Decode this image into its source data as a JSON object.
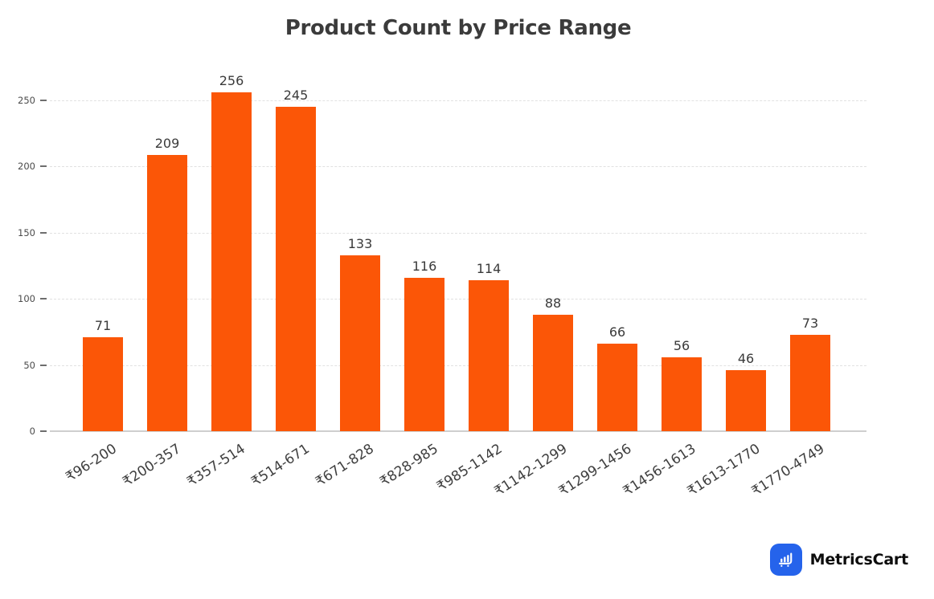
{
  "chart_data": {
    "type": "bar",
    "title": "Product Count by Price Range",
    "categories": [
      "₹96-200",
      "₹200-357",
      "₹357-514",
      "₹514-671",
      "₹671-828",
      "₹828-985",
      "₹985-1142",
      "₹1142-1299",
      "₹1299-1456",
      "₹1456-1613",
      "₹1613-1770",
      "₹1770-4749"
    ],
    "values": [
      71,
      209,
      256,
      245,
      133,
      116,
      114,
      88,
      66,
      56,
      46,
      73
    ],
    "xlabel": "",
    "ylabel": "",
    "ylim": [
      0,
      250
    ],
    "yticks": [
      0,
      50,
      100,
      150,
      200,
      250
    ],
    "bar_color": "#fb5607",
    "value_label_color": "#3a3a3a",
    "grid": "horizontal-dashed",
    "legend": "none"
  },
  "branding": {
    "logo_text": "MetricsCart",
    "logo_icon": "bar-chart-cart-icon",
    "logo_color": "#2563eb",
    "logo_glyph_color": "#ffffff"
  }
}
